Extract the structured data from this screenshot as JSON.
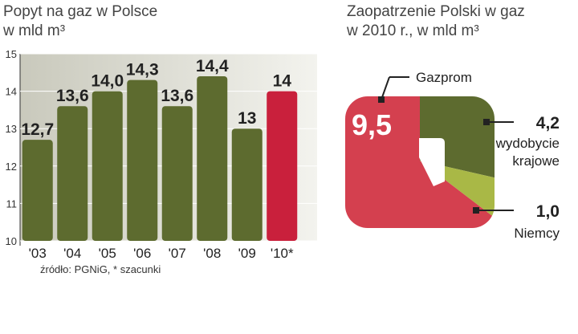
{
  "chart_data": [
    {
      "type": "bar",
      "title": "Popyt na gaz w Polsce",
      "subtitle": "w mld m³",
      "categories": [
        "'03",
        "'04",
        "'05",
        "'06",
        "'07",
        "'08",
        "'09",
        "'10*"
      ],
      "values": [
        12.7,
        13.6,
        14.0,
        14.3,
        13.6,
        14.4,
        13,
        14
      ],
      "value_labels": [
        "12,7",
        "13,6",
        "14,0",
        "14,3",
        "13,6",
        "14,4",
        "13",
        "14"
      ],
      "colors": [
        "#5d6b2f",
        "#5d6b2f",
        "#5d6b2f",
        "#5d6b2f",
        "#5d6b2f",
        "#5d6b2f",
        "#5d6b2f",
        "#c9203c"
      ],
      "ylim": [
        10,
        15
      ],
      "yticks": [
        10,
        11,
        12,
        13,
        14,
        15
      ],
      "grid": true,
      "source": "źródło: PGNiG, * szacunki"
    },
    {
      "type": "pie",
      "title": "Zaopatrzenie Polski w gaz",
      "subtitle": "w 2010 r., w mld m³",
      "categories": [
        "Gazprom",
        "wydobycie krajowe",
        "Niemcy"
      ],
      "values": [
        9.5,
        4.2,
        1.0
      ],
      "value_labels": [
        "9,5",
        "4,2",
        "1,0"
      ],
      "colors": [
        "#d4404f",
        "#5d6b2f",
        "#a9b846"
      ]
    }
  ]
}
